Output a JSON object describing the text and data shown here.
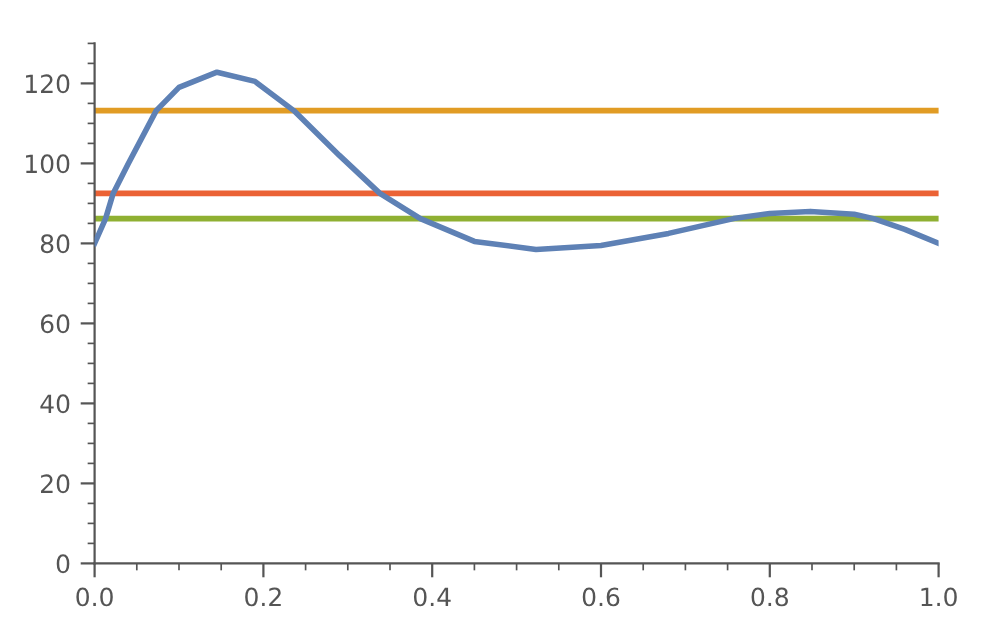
{
  "chart_data": {
    "type": "line",
    "x": [
      0,
      0.013,
      0.022,
      0.04,
      0.073,
      0.1,
      0.145,
      0.19,
      0.236,
      0.29,
      0.338,
      0.386,
      0.45,
      0.523,
      0.6,
      0.68,
      0.757,
      0.8,
      0.848,
      0.9,
      0.923,
      0.96,
      1.0
    ],
    "series": [
      {
        "color": "#5e81b5",
        "values": [
          80,
          86.2,
          92.5,
          100,
          113.2,
          119,
          122.8,
          120.5,
          113.2,
          102,
          92.5,
          86.2,
          80.5,
          78.5,
          79.5,
          82.5,
          86.2,
          87.5,
          88,
          87.3,
          86.2,
          83.5,
          80
        ]
      }
    ],
    "ref_lines": [
      {
        "axis": "y",
        "value": 113.2,
        "color": "#e19c24"
      },
      {
        "axis": "y",
        "value": 92.5,
        "color": "#eb6235"
      },
      {
        "axis": "y",
        "value": 86.2,
        "color": "#8fb032"
      }
    ],
    "xlim": [
      0,
      1
    ],
    "ylim": [
      0,
      130
    ],
    "xticks": [
      {
        "value": 0,
        "label": "0.0"
      },
      {
        "value": 0.2,
        "label": "0.2"
      },
      {
        "value": 0.4,
        "label": "0.4"
      },
      {
        "value": 0.6,
        "label": "0.6"
      },
      {
        "value": 0.8,
        "label": "0.8"
      },
      {
        "value": 1.0,
        "label": "1.0"
      }
    ],
    "yticks": [
      0,
      20,
      40,
      60,
      80,
      100,
      120
    ],
    "grid": false,
    "legend": false,
    "marker": "none",
    "line_style": "solid"
  }
}
